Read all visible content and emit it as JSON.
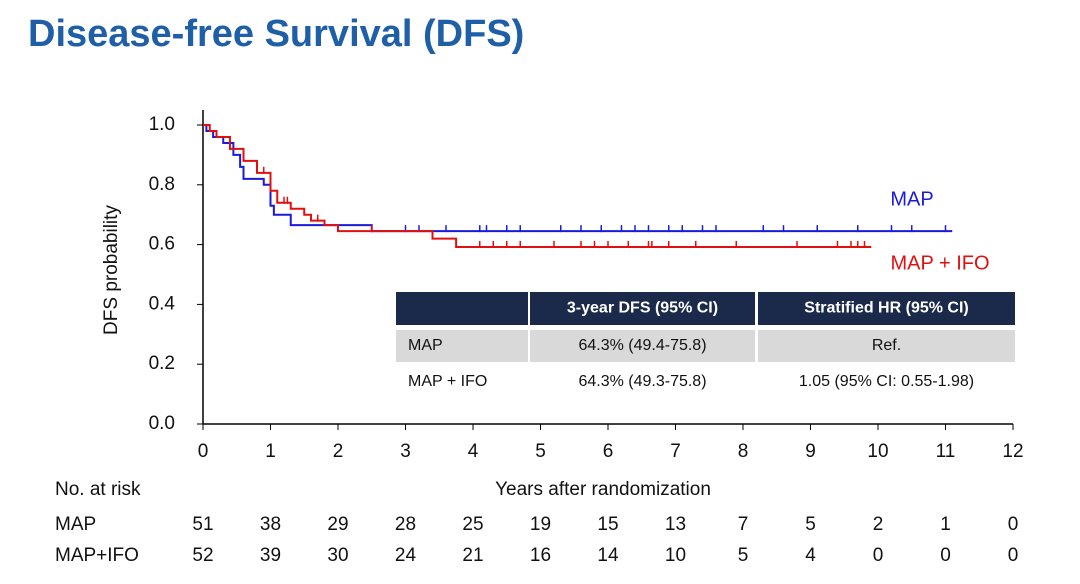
{
  "chart_data": {
    "type": "km",
    "title": "Disease-free Survival (DFS)",
    "xlabel": "Years after randomization",
    "ylabel": "DFS probability",
    "xlim": [
      0,
      12
    ],
    "xticks": [
      0,
      1,
      2,
      3,
      4,
      5,
      6,
      7,
      8,
      9,
      10,
      11,
      12
    ],
    "ylim": [
      0,
      1
    ],
    "yticks": [
      {
        "value": 0,
        "label": "0.0"
      },
      0.2,
      0.4,
      0.6,
      0.8,
      {
        "value": 1,
        "label": "1.0"
      }
    ],
    "series": [
      {
        "name": "MAP",
        "color": "#1a1adc",
        "x": [
          0,
          0.05,
          0.15,
          0.3,
          0.45,
          0.55,
          0.6,
          0.9,
          1.0,
          1.05,
          1.3,
          2.5,
          11.1
        ],
        "values": [
          1.0,
          0.98,
          0.96,
          0.94,
          0.9,
          0.86,
          0.82,
          0.8,
          0.73,
          0.7,
          0.665,
          0.645,
          0.645
        ],
        "censored": [
          2.5,
          3.0,
          3.2,
          3.6,
          4.1,
          4.2,
          4.5,
          4.7,
          5.3,
          5.6,
          5.9,
          6.2,
          6.4,
          6.6,
          6.9,
          7.1,
          7.4,
          7.6,
          8.3,
          8.6,
          9.1,
          9.7,
          10.2,
          10.5,
          11.0
        ]
      },
      {
        "name": "MAP + IFO",
        "color": "#e01010",
        "x": [
          0,
          0.1,
          0.2,
          0.4,
          0.6,
          0.8,
          1.0,
          1.1,
          1.3,
          1.5,
          1.6,
          1.8,
          2.0,
          3.4,
          3.75,
          9.9
        ],
        "values": [
          1.0,
          0.98,
          0.96,
          0.92,
          0.88,
          0.84,
          0.78,
          0.74,
          0.72,
          0.7,
          0.68,
          0.665,
          0.645,
          0.62,
          0.592,
          0.592
        ],
        "censored": [
          0.2,
          0.4,
          0.9,
          1.2,
          1.25,
          1.7,
          2.5,
          4.1,
          4.3,
          4.5,
          4.7,
          5.2,
          5.6,
          5.8,
          6.0,
          6.3,
          6.6,
          6.65,
          6.9,
          7.3,
          7.9,
          8.8,
          9.4,
          9.6,
          9.7,
          9.8
        ]
      }
    ],
    "summary_table": {
      "header": [
        "",
        "3-year DFS (95% CI)",
        "Stratified HR (95% CI)"
      ],
      "rows": [
        [
          "MAP",
          "64.3% (49.4-75.8)",
          "Ref."
        ],
        [
          "MAP + IFO",
          "64.3% (49.3-75.8)",
          "1.05 (95% CI: 0.55-1.98)"
        ]
      ]
    },
    "risk_table": {
      "title": "No. at risk",
      "rows": [
        {
          "name": "MAP",
          "values": [
            51,
            38,
            29,
            28,
            25,
            19,
            15,
            13,
            7,
            5,
            2,
            1,
            0
          ]
        },
        {
          "name": "MAP+IFO",
          "values": [
            52,
            39,
            30,
            24,
            21,
            16,
            14,
            10,
            5,
            4,
            0,
            0,
            0
          ]
        }
      ]
    }
  }
}
